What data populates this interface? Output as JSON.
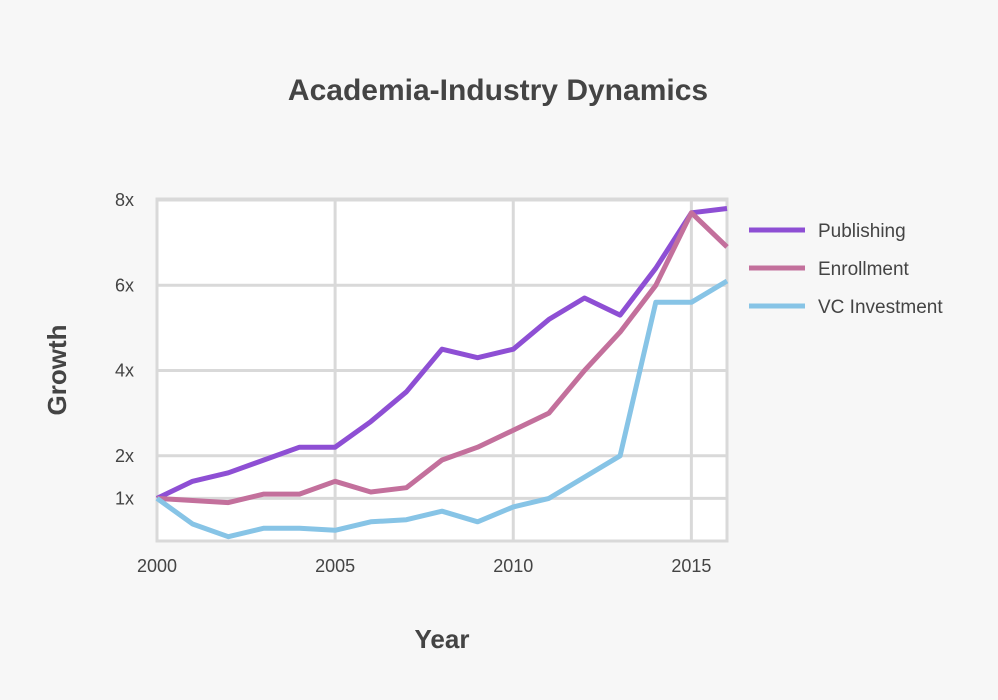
{
  "chart_data": {
    "type": "line",
    "title": "Academia-Industry Dynamics",
    "xlabel": "Year",
    "ylabel": "Growth",
    "xlim": [
      2000,
      2016
    ],
    "ylim": [
      0,
      8
    ],
    "x_ticks": [
      {
        "value": 2000,
        "label": "2000"
      },
      {
        "value": 2005,
        "label": "2005"
      },
      {
        "value": 2010,
        "label": "2010"
      },
      {
        "value": 2015,
        "label": "2015"
      }
    ],
    "y_ticks": [
      {
        "value": 1,
        "label": "1x"
      },
      {
        "value": 2,
        "label": "2x"
      },
      {
        "value": 4,
        "label": "4x"
      },
      {
        "value": 6,
        "label": "6x"
      },
      {
        "value": 8,
        "label": "8x"
      }
    ],
    "grid": true,
    "legend_position": "right",
    "x": [
      2000,
      2001,
      2002,
      2003,
      2004,
      2005,
      2006,
      2007,
      2008,
      2009,
      2010,
      2011,
      2012,
      2013,
      2014,
      2015,
      2016
    ],
    "series": [
      {
        "name": "Publishing",
        "color": "#8e4fd4",
        "values": [
          1.0,
          1.4,
          1.6,
          1.9,
          2.2,
          2.2,
          2.8,
          3.5,
          4.5,
          4.3,
          4.5,
          5.2,
          5.7,
          5.3,
          6.4,
          7.7,
          7.8
        ]
      },
      {
        "name": "Enrollment",
        "color": "#c3709c",
        "values": [
          1.0,
          0.95,
          0.9,
          1.1,
          1.1,
          1.4,
          1.15,
          1.25,
          1.9,
          2.2,
          2.6,
          3.0,
          4.0,
          4.9,
          6.0,
          7.7,
          6.9
        ]
      },
      {
        "name": "VC Investment",
        "color": "#87c4e6",
        "values": [
          1.0,
          0.4,
          0.1,
          0.3,
          0.3,
          0.25,
          0.45,
          0.5,
          0.7,
          0.45,
          0.8,
          1.0,
          1.5,
          2.0,
          5.6,
          5.6,
          6.1
        ]
      }
    ]
  }
}
